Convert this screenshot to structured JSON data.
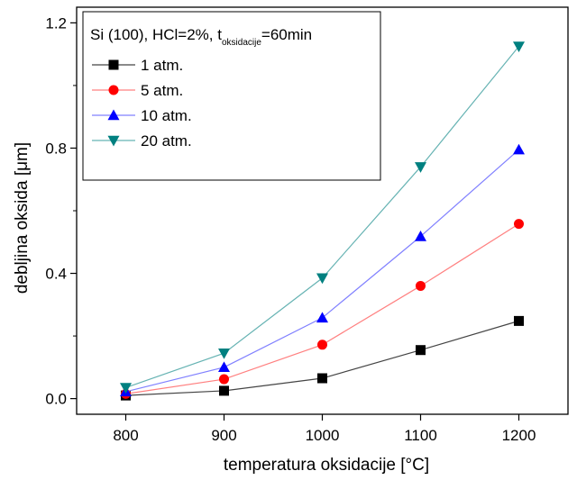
{
  "chart_data": {
    "type": "line",
    "title": "",
    "legend_title": {
      "main": "Si (100), HCl=2%, t",
      "subscript": "oksidacije",
      "suffix": "=60min"
    },
    "xlabel": "temperatura oksidacije [°C]",
    "ylabel": "debljina oksida [μm]",
    "xlim": [
      750,
      1250
    ],
    "ylim": [
      -0.05,
      1.25
    ],
    "x": [
      800,
      900,
      1000,
      1100,
      1200
    ],
    "xticks": [
      "800",
      "900",
      "1000",
      "1100",
      "1200"
    ],
    "yticks": [
      {
        "value": 0.0,
        "label": "0.0"
      },
      {
        "value": 0.4,
        "label": "0.4"
      },
      {
        "value": 0.8,
        "label": "0.8"
      },
      {
        "value": 1.2,
        "label": "1.2"
      }
    ],
    "grid": false,
    "legend_position": "top-left",
    "series": [
      {
        "name": "1 atm.",
        "marker": "square",
        "color": "#000000",
        "line_color": "#444444",
        "values": [
          0.01,
          0.025,
          0.065,
          0.155,
          0.248
        ]
      },
      {
        "name": "5 atm.",
        "marker": "circle",
        "color": "#ff0000",
        "line_color": "#ff8080",
        "values": [
          0.015,
          0.062,
          0.172,
          0.36,
          0.558
        ]
      },
      {
        "name": "10 atm.",
        "marker": "triangle-up",
        "color": "#0000ff",
        "line_color": "#8080ff",
        "values": [
          0.022,
          0.1,
          0.258,
          0.518,
          0.795
        ]
      },
      {
        "name": "20 atm.",
        "marker": "triangle-down",
        "color": "#008080",
        "line_color": "#66b3b3",
        "values": [
          0.035,
          0.145,
          0.385,
          0.74,
          1.125
        ]
      }
    ]
  }
}
